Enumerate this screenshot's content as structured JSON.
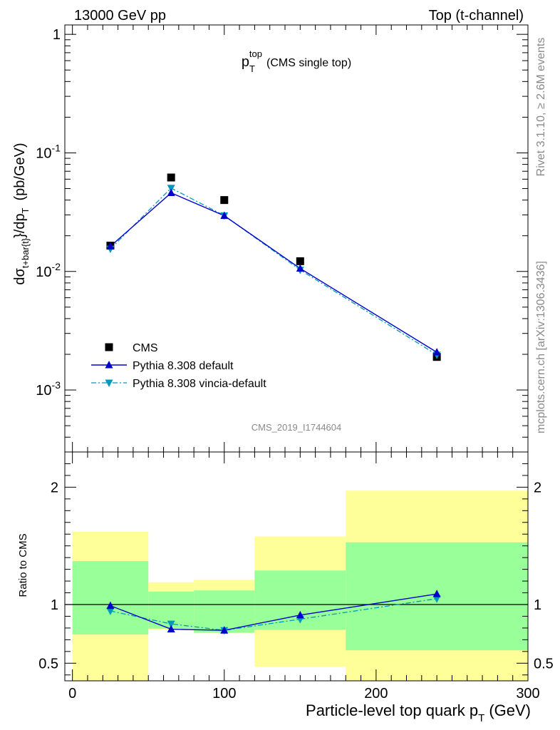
{
  "header": {
    "left": "13000 GeV pp",
    "right": "Top (t-channel)"
  },
  "side": {
    "rivet": "Rivet 3.1.10, ≥ 2.6M events",
    "mcplots": "mcplots.cern.ch [arXiv:1306.3436]"
  },
  "colors": {
    "cms": "#000000",
    "pythia_default": "#0000cc",
    "pythia_vincia": "#0099bb",
    "band_inner": "#99ff99",
    "band_outer": "#ffff99"
  },
  "chart_data": [
    {
      "type": "line",
      "title": "p_T^top (CMS single top)",
      "title_main": "p",
      "title_sub": "T",
      "title_sup": "top",
      "title_note": "(CMS single top)",
      "ylabel": "dσ_{t+bar{t}}/dp_T (pb/GeV)",
      "watermark": "CMS_2019_I1744604",
      "yscale": "log",
      "xlim": [
        -5,
        300
      ],
      "ylim": [
        0.0003,
        1.2
      ],
      "ytick_labels": [
        "1",
        "10^-1",
        "10^-2",
        "10^-3"
      ],
      "legend_position": "bottom-left",
      "x": [
        25,
        65,
        100,
        150,
        240
      ],
      "series": [
        {
          "name": "CMS",
          "marker": "square",
          "values": [
            0.0165,
            0.062,
            0.04,
            0.0122,
            0.0019
          ]
        },
        {
          "name": "Pythia 8.308 default",
          "marker": "triangle-up",
          "line": "solid",
          "values": [
            0.0163,
            0.046,
            0.0295,
            0.0106,
            0.00208
          ]
        },
        {
          "name": "Pythia 8.308 vincia-default",
          "marker": "triangle-down",
          "line": "dash-dot",
          "values": [
            0.0155,
            0.0505,
            0.0296,
            0.0103,
            0.00198
          ]
        }
      ]
    },
    {
      "type": "line",
      "ylabel": "Ratio to CMS",
      "xlabel": "Particle-level top quark p_T (GeV)",
      "xlabel_main": "Particle-level top quark p",
      "xlabel_sub": "T",
      "xlabel_unit": "(GeV)",
      "xlim": [
        -5,
        300
      ],
      "ylim": [
        0.35,
        2.3
      ],
      "xticks": [
        0,
        100,
        200,
        300
      ],
      "yticks": [
        0.5,
        1,
        2
      ],
      "bins": [
        {
          "x0": 0,
          "x1": 50,
          "inner": [
            0.745,
            1.37
          ],
          "outer": [
            0.345,
            1.62
          ]
        },
        {
          "x0": 50,
          "x1": 80,
          "inner": [
            0.795,
            1.11
          ],
          "outer": [
            0.785,
            1.19
          ]
        },
        {
          "x0": 80,
          "x1": 120,
          "inner": [
            0.76,
            1.12
          ],
          "outer": [
            0.755,
            1.21
          ]
        },
        {
          "x0": 120,
          "x1": 180,
          "inner": [
            0.785,
            1.29
          ],
          "outer": [
            0.47,
            1.58
          ]
        },
        {
          "x0": 180,
          "x1": 300,
          "inner": [
            0.61,
            1.53
          ],
          "outer": [
            0.345,
            1.97
          ]
        }
      ],
      "x": [
        25,
        65,
        100,
        150,
        240
      ],
      "series": [
        {
          "name": "Pythia 8.308 default",
          "values": [
            0.99,
            0.79,
            0.78,
            0.91,
            1.09
          ]
        },
        {
          "name": "Pythia 8.308 vincia-default",
          "values": [
            0.945,
            0.835,
            0.78,
            0.875,
            1.05
          ]
        }
      ]
    }
  ]
}
